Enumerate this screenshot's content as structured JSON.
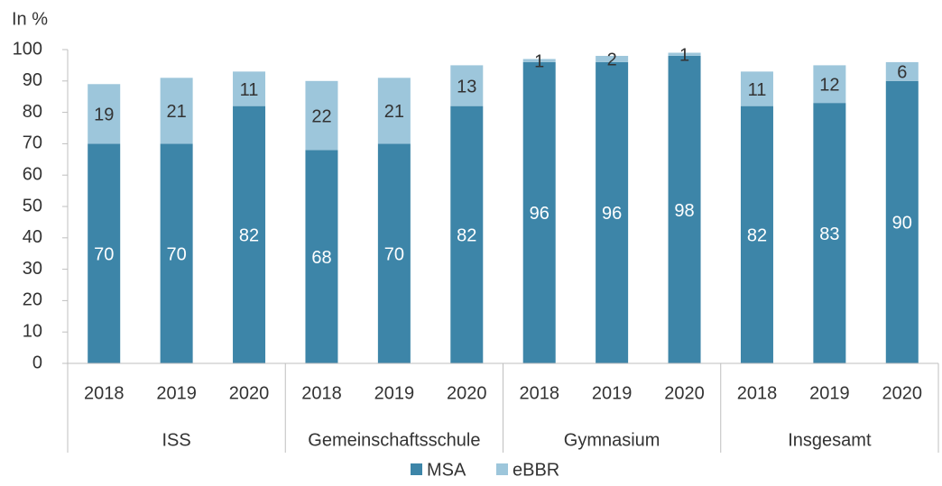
{
  "chart_data": {
    "type": "stacked_bar",
    "ylabel": "In %",
    "categories": [
      "2018",
      "2019",
      "2020",
      "2018",
      "2019",
      "2020",
      "2018",
      "2019",
      "2020",
      "2018",
      "2019",
      "2020"
    ],
    "groups": [
      "ISS",
      "Gemeinschaftsschule",
      "Gymnasium",
      "Insgesamt"
    ],
    "series": [
      {
        "name": "MSA",
        "color": "#3d85a8",
        "values": [
          70,
          70,
          82,
          68,
          70,
          82,
          96,
          96,
          98,
          82,
          83,
          90
        ]
      },
      {
        "name": "eBBR",
        "color": "#9dc6db",
        "values": [
          19,
          21,
          11,
          22,
          21,
          13,
          1,
          2,
          1,
          11,
          12,
          6
        ]
      }
    ],
    "ylim": [
      0,
      100
    ],
    "yticks": [
      0,
      10,
      20,
      30,
      40,
      50,
      60,
      70,
      80,
      90,
      100
    ],
    "grid": false
  }
}
